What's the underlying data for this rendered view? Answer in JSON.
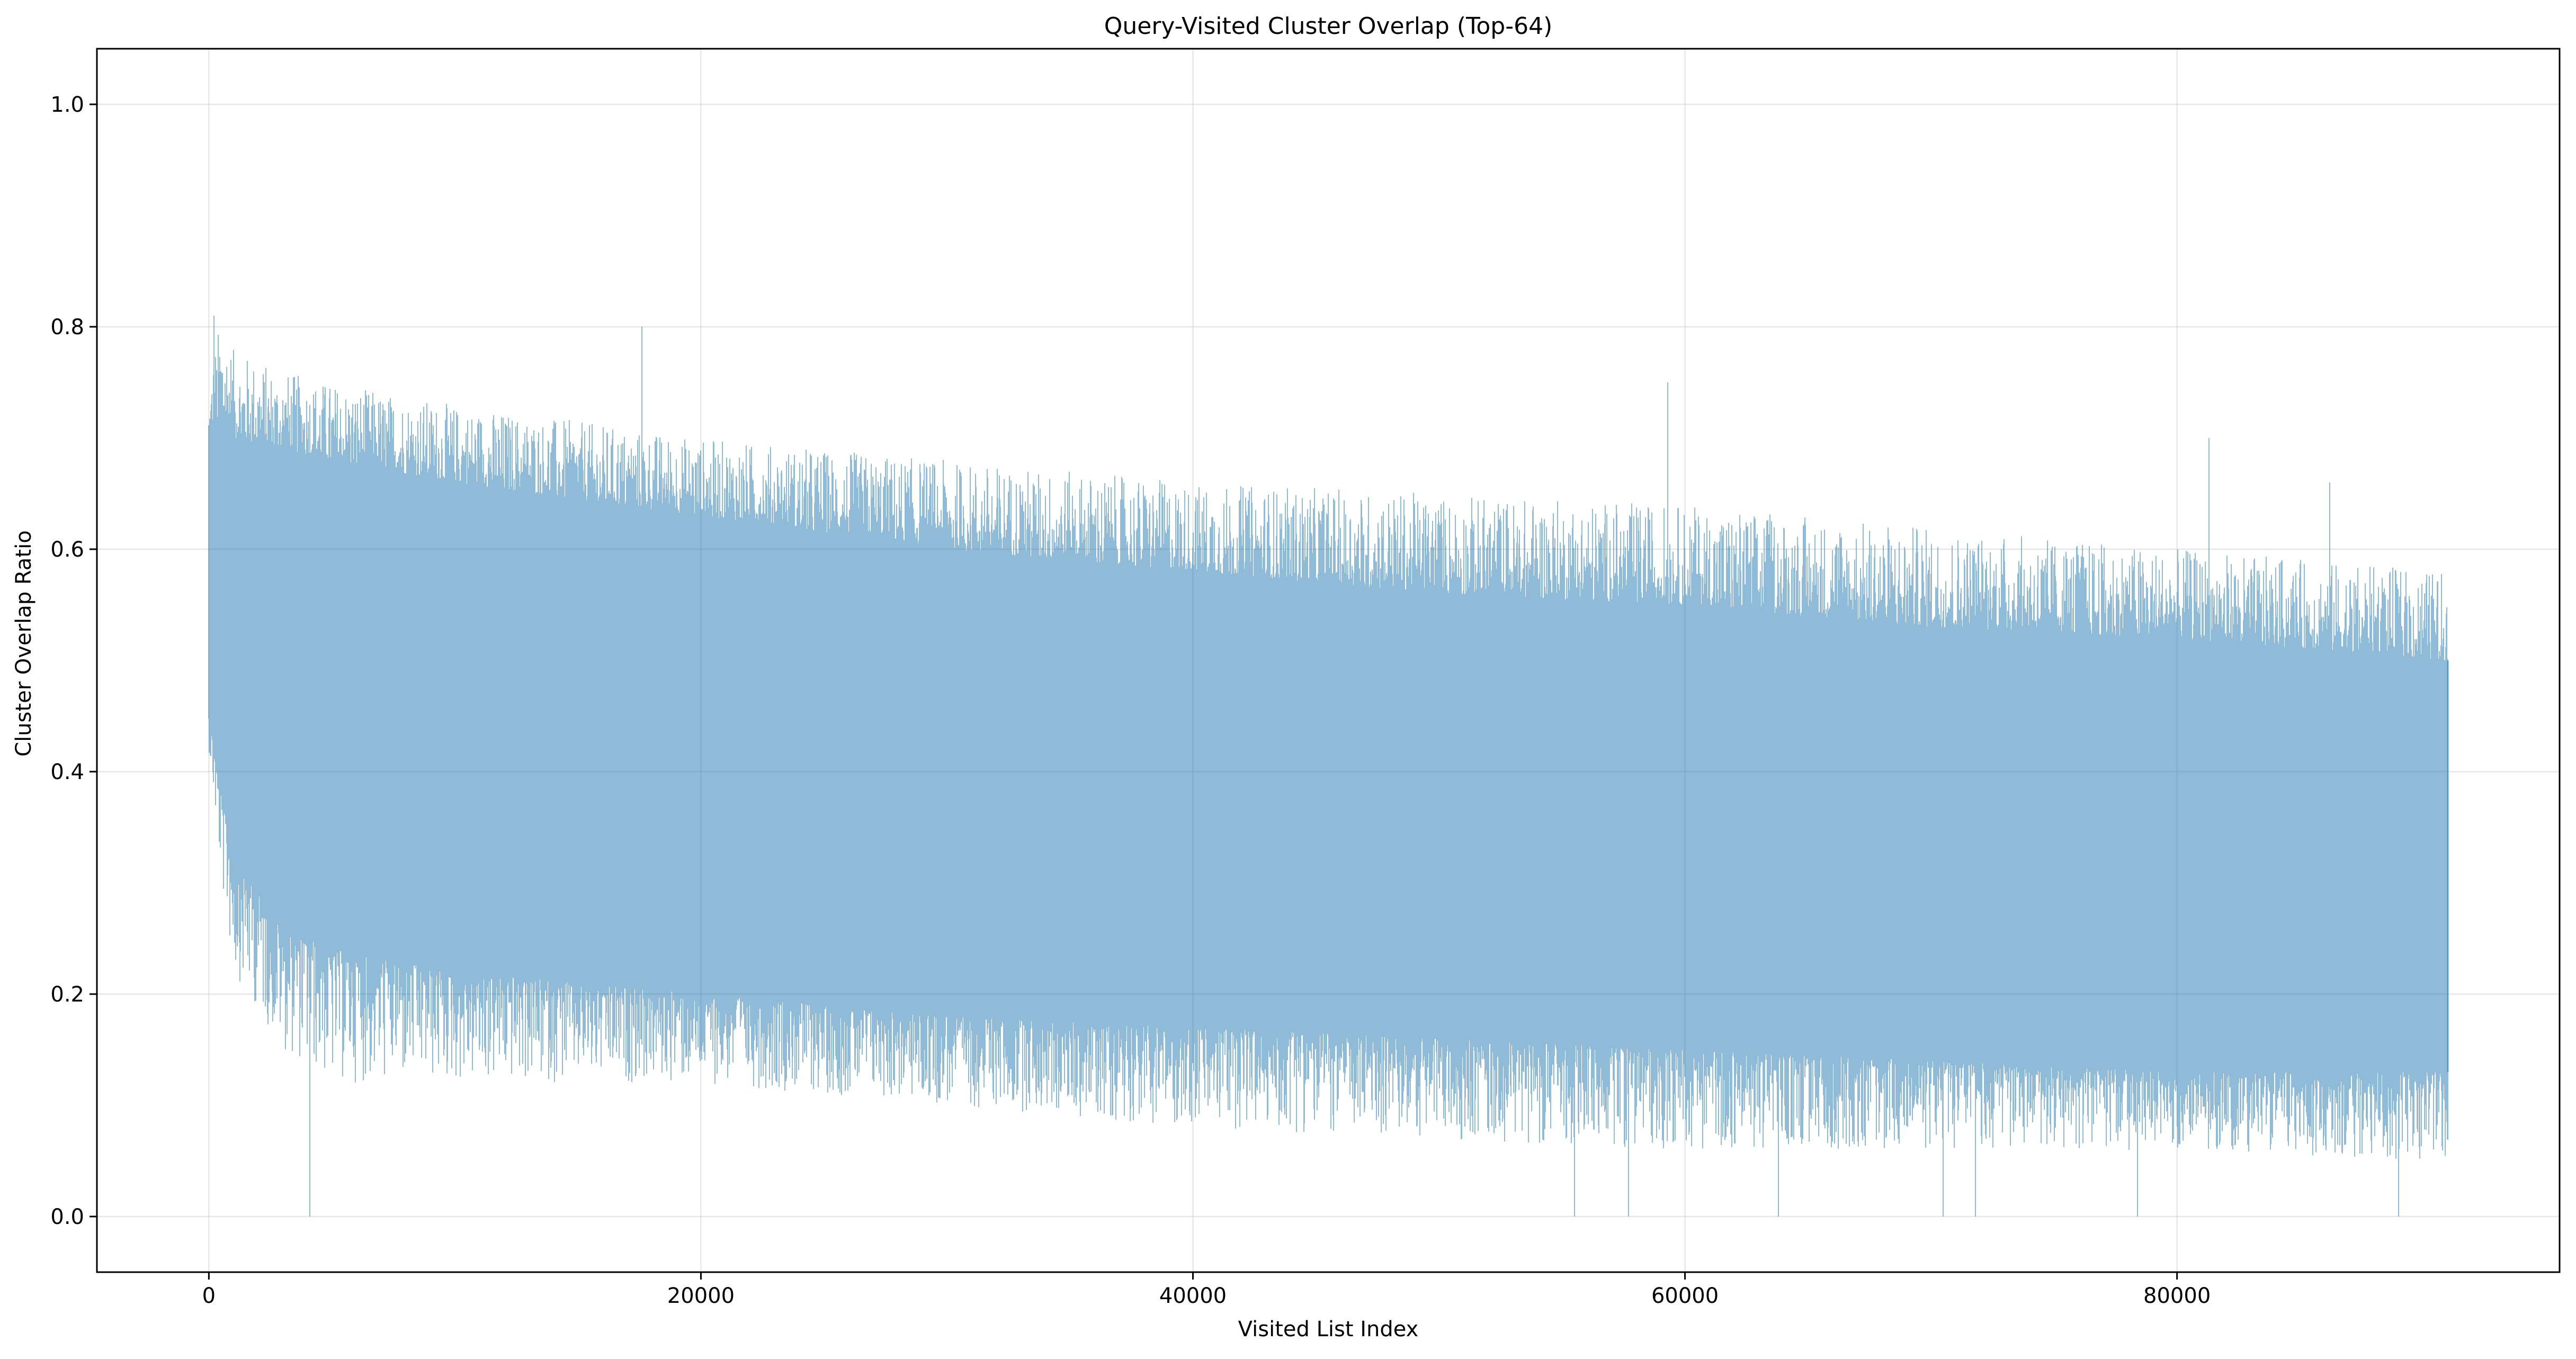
{
  "chart_data": {
    "type": "line",
    "title": "Query-Visited Cluster Overlap (Top-64)",
    "xlabel": "Visited List Index",
    "ylabel": "Cluster Overlap Ratio",
    "xlim": [
      -4550,
      95550
    ],
    "ylim": [
      -0.05,
      1.05
    ],
    "xticks": [
      {
        "value": 0,
        "label": "0"
      },
      {
        "value": 20000,
        "label": "20000"
      },
      {
        "value": 40000,
        "label": "40000"
      },
      {
        "value": 60000,
        "label": "60000"
      },
      {
        "value": 80000,
        "label": "80000"
      }
    ],
    "yticks": [
      {
        "value": 0.0,
        "label": "0.0"
      },
      {
        "value": 0.2,
        "label": "0.2"
      },
      {
        "value": 0.4,
        "label": "0.4"
      },
      {
        "value": 0.6,
        "label": "0.6"
      },
      {
        "value": 0.8,
        "label": "0.8"
      },
      {
        "value": 1.0,
        "label": "1.0"
      }
    ],
    "grid": true,
    "series": [
      {
        "color": "#1f77b4",
        "opacity": 0.5,
        "x_range": [
          0,
          91000
        ],
        "envelope": {
          "x": [
            0,
            500,
            1000,
            3000,
            5000,
            10000,
            20000,
            30000,
            40000,
            50000,
            60000,
            70000,
            80000,
            91000
          ],
          "upper": [
            0.76,
            0.81,
            0.78,
            0.76,
            0.75,
            0.73,
            0.7,
            0.68,
            0.66,
            0.65,
            0.64,
            0.62,
            0.6,
            0.58
          ],
          "lower": [
            0.42,
            0.3,
            0.22,
            0.15,
            0.12,
            0.12,
            0.12,
            0.1,
            0.08,
            0.07,
            0.06,
            0.06,
            0.06,
            0.05
          ],
          "dense_upper": [
            0.68,
            0.72,
            0.7,
            0.69,
            0.68,
            0.66,
            0.63,
            0.6,
            0.58,
            0.56,
            0.55,
            0.53,
            0.52,
            0.5
          ],
          "dense_lower": [
            0.45,
            0.38,
            0.32,
            0.26,
            0.24,
            0.22,
            0.2,
            0.18,
            0.17,
            0.16,
            0.15,
            0.14,
            0.13,
            0.13
          ]
        },
        "peaks": [
          {
            "x": 200,
            "y": 0.81
          },
          {
            "x": 17600,
            "y": 0.8
          },
          {
            "x": 59300,
            "y": 0.75
          },
          {
            "x": 81300,
            "y": 0.7
          },
          {
            "x": 86200,
            "y": 0.66
          }
        ],
        "troughs": [
          {
            "x": 4100,
            "y": 0.0
          },
          {
            "x": 55500,
            "y": 0.0
          },
          {
            "x": 57700,
            "y": 0.0
          },
          {
            "x": 63800,
            "y": 0.0
          },
          {
            "x": 70500,
            "y": 0.0
          },
          {
            "x": 71800,
            "y": 0.0
          },
          {
            "x": 78400,
            "y": 0.0
          },
          {
            "x": 89000,
            "y": 0.0
          }
        ],
        "last_value": 0.5
      }
    ]
  }
}
